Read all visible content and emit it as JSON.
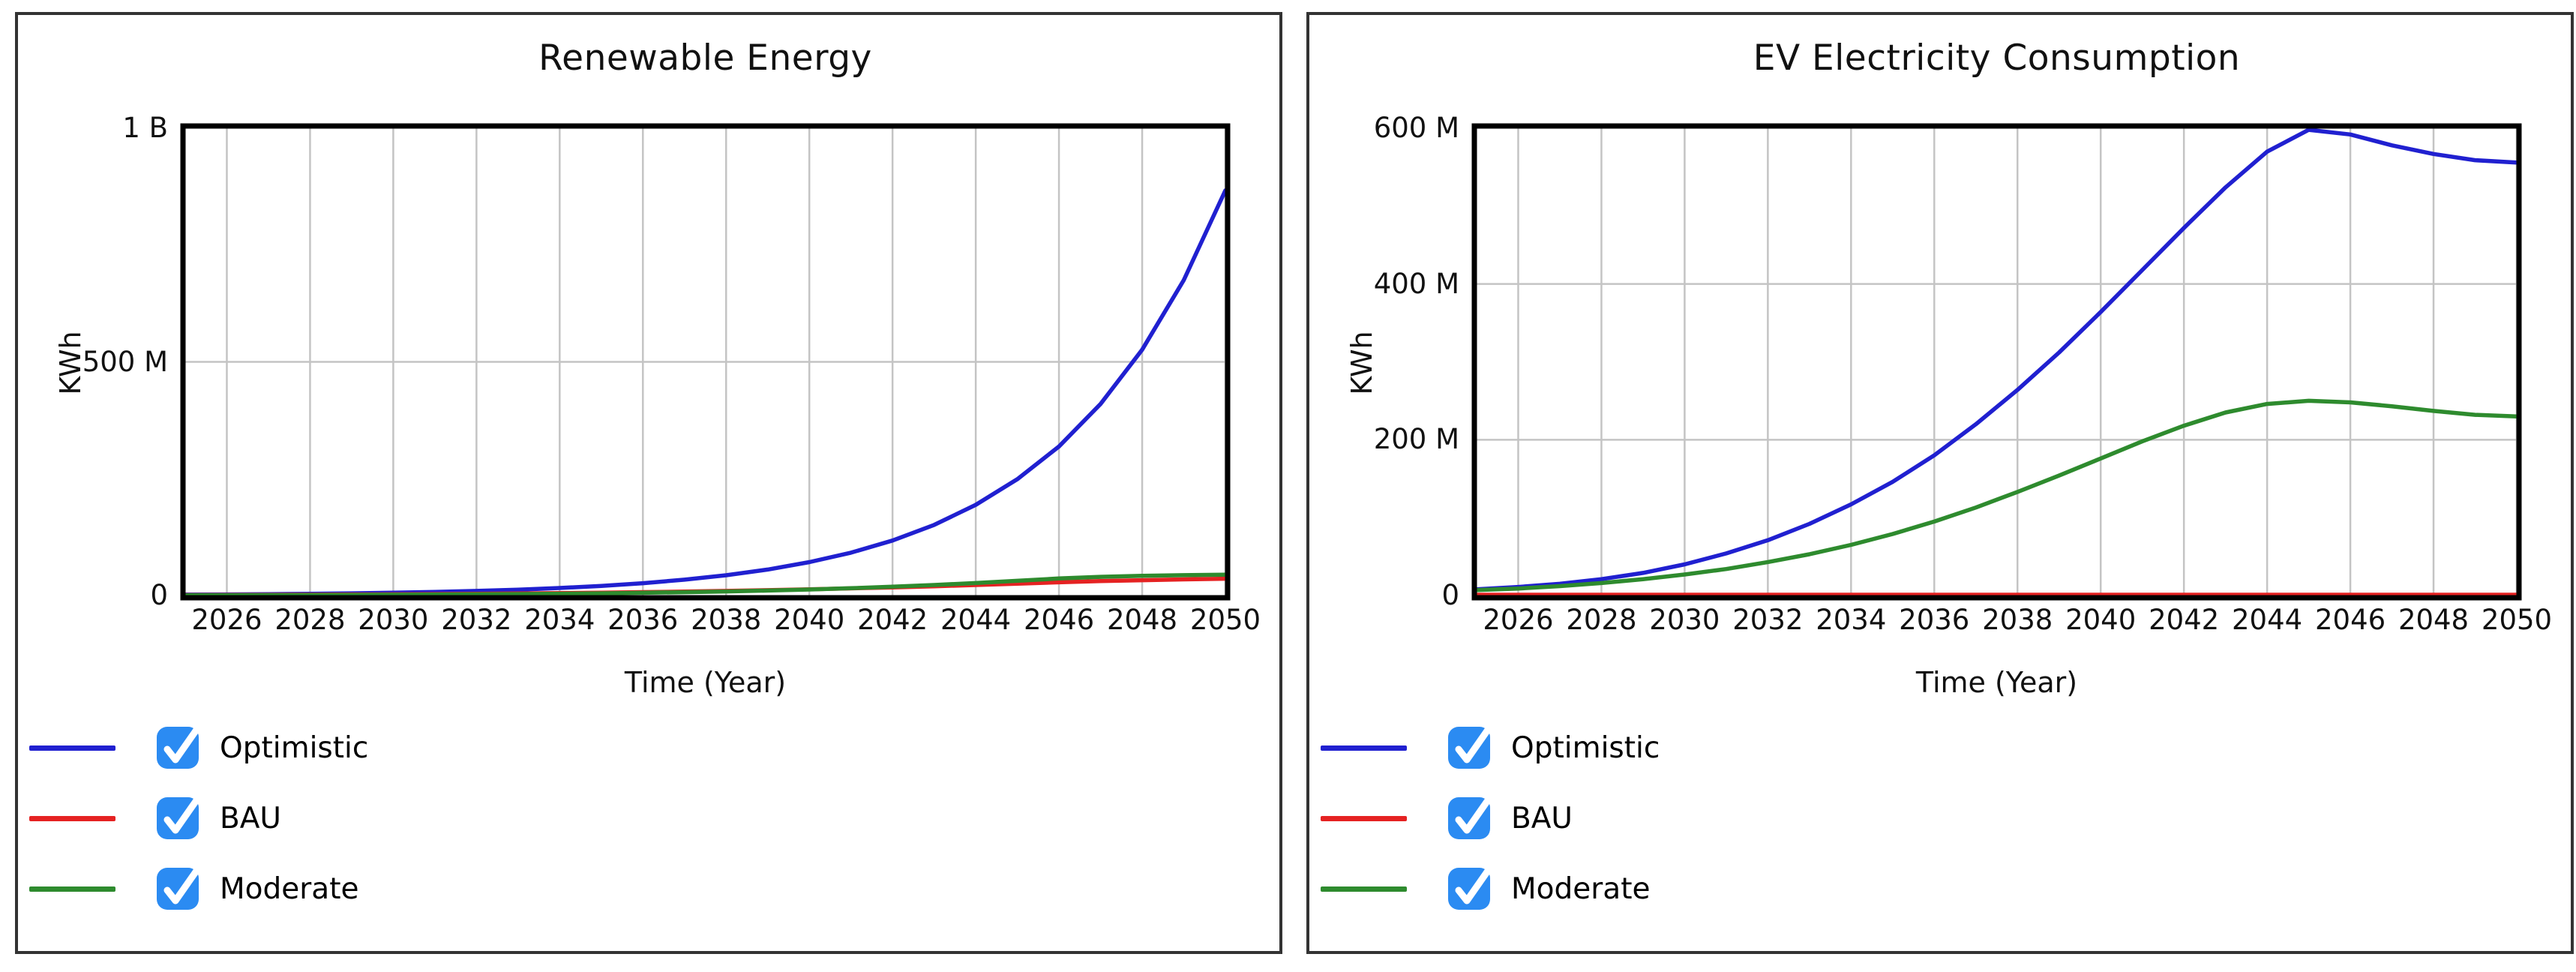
{
  "page": {
    "background": "#ffffff"
  },
  "styles": {
    "series_colors": {
      "Optimistic": "#2020d0",
      "BAU": "#e52222",
      "Moderate": "#2e8b2e"
    },
    "checkbox_color": "#2b8bf2",
    "checkmark_color": "#ffffff",
    "grid_color": "#c4c4c4",
    "axis_frame_color": "#000000",
    "panel_border_color": "#333333",
    "text_color": "#111111"
  },
  "chart_data": [
    {
      "type": "line",
      "title": "Renewable Energy",
      "xlabel": "Time (Year)",
      "ylabel": "KWh",
      "unit": "KWh",
      "values_unit": "millions of KWh",
      "grid": true,
      "legend_position": "bottom-left",
      "xlim": [
        2025,
        2050
      ],
      "ylim_millions": [
        0,
        1000
      ],
      "x_tick_years": [
        2026,
        2028,
        2030,
        2032,
        2034,
        2036,
        2038,
        2040,
        2042,
        2044,
        2046,
        2048,
        2050
      ],
      "y_ticks": [
        {
          "value_millions": 0,
          "label": "0"
        },
        {
          "value_millions": 500,
          "label": "500 M"
        },
        {
          "value_millions": 1000,
          "label": "1 B"
        }
      ],
      "y_gridlines_millions": [
        500
      ],
      "x_years": [
        2025,
        2026,
        2027,
        2028,
        2029,
        2030,
        2031,
        2032,
        2033,
        2034,
        2035,
        2036,
        2037,
        2038,
        2039,
        2040,
        2041,
        2042,
        2043,
        2044,
        2045,
        2046,
        2047,
        2048,
        2049,
        2050
      ],
      "series": [
        {
          "name": "Optimistic",
          "color": "#2020d0",
          "checked": true,
          "values_millions": [
            2,
            2.3,
            2.9,
            3.7,
            4.7,
            6,
            7.7,
            9.8,
            12.5,
            16,
            20.5,
            26.3,
            33.8,
            43.3,
            55.6,
            71.4,
            91.6,
            117.6,
            151,
            194,
            249,
            319,
            410,
            526,
            675,
            867
          ]
        },
        {
          "name": "BAU",
          "color": "#e52222",
          "checked": true,
          "values_millions": [
            1,
            1.2,
            1.5,
            1.8,
            2.2,
            2.6,
            3.1,
            3.7,
            4.4,
            5.2,
            6.1,
            7.2,
            8.4,
            9.8,
            11.4,
            13.2,
            15.2,
            17.4,
            19.8,
            22.4,
            25.2,
            28.2,
            30.8,
            32.8,
            34.5,
            36
          ]
        },
        {
          "name": "Moderate",
          "color": "#2e8b2e",
          "checked": true,
          "values_millions": [
            0.5,
            0.6,
            0.8,
            1,
            1.3,
            1.6,
            2,
            2.5,
            3.1,
            3.8,
            4.7,
            5.8,
            7.1,
            8.7,
            10.6,
            12.9,
            15.6,
            18.8,
            22.5,
            26.7,
            31.4,
            36.5,
            40,
            42,
            43.5,
            44.5
          ]
        }
      ]
    },
    {
      "type": "line",
      "title": "EV Electricity Consumption",
      "xlabel": "Time (Year)",
      "ylabel": "KWh",
      "unit": "KWh",
      "values_unit": "millions of KWh",
      "grid": true,
      "legend_position": "bottom-left",
      "xlim": [
        2025,
        2050
      ],
      "ylim_millions": [
        0,
        600
      ],
      "x_tick_years": [
        2026,
        2028,
        2030,
        2032,
        2034,
        2036,
        2038,
        2040,
        2042,
        2044,
        2046,
        2048,
        2050
      ],
      "y_ticks": [
        {
          "value_millions": 0,
          "label": "0"
        },
        {
          "value_millions": 200,
          "label": "200 M"
        },
        {
          "value_millions": 400,
          "label": "400 M"
        },
        {
          "value_millions": 600,
          "label": "600 M"
        }
      ],
      "y_gridlines_millions": [
        200,
        400
      ],
      "x_years": [
        2025,
        2026,
        2027,
        2028,
        2029,
        2030,
        2031,
        2032,
        2033,
        2034,
        2035,
        2036,
        2037,
        2038,
        2039,
        2040,
        2041,
        2042,
        2043,
        2044,
        2045,
        2046,
        2047,
        2048,
        2049,
        2050
      ],
      "series": [
        {
          "name": "Optimistic",
          "color": "#2020d0",
          "checked": true,
          "values_millions": [
            8,
            11,
            15,
            21,
            29,
            40,
            54,
            71,
            92,
            117,
            146,
            180,
            220,
            264,
            312,
            364,
            418,
            472,
            524,
            570,
            598,
            592,
            578,
            567,
            559,
            556
          ]
        },
        {
          "name": "BAU",
          "color": "#e52222",
          "checked": true,
          "values_millions": [
            1,
            1,
            1,
            1,
            1,
            1,
            1,
            1,
            1,
            1,
            1,
            1,
            1,
            1,
            1,
            1,
            1,
            1,
            1,
            1,
            1,
            1,
            1,
            1,
            1,
            1
          ]
        },
        {
          "name": "Moderate",
          "color": "#2e8b2e",
          "checked": true,
          "values_millions": [
            7,
            9,
            12,
            16,
            21,
            27,
            34,
            43,
            53,
            65,
            79,
            95,
            113,
            133,
            154,
            176,
            198,
            218,
            235,
            246,
            250,
            248,
            243,
            237,
            232,
            230
          ]
        }
      ]
    }
  ]
}
